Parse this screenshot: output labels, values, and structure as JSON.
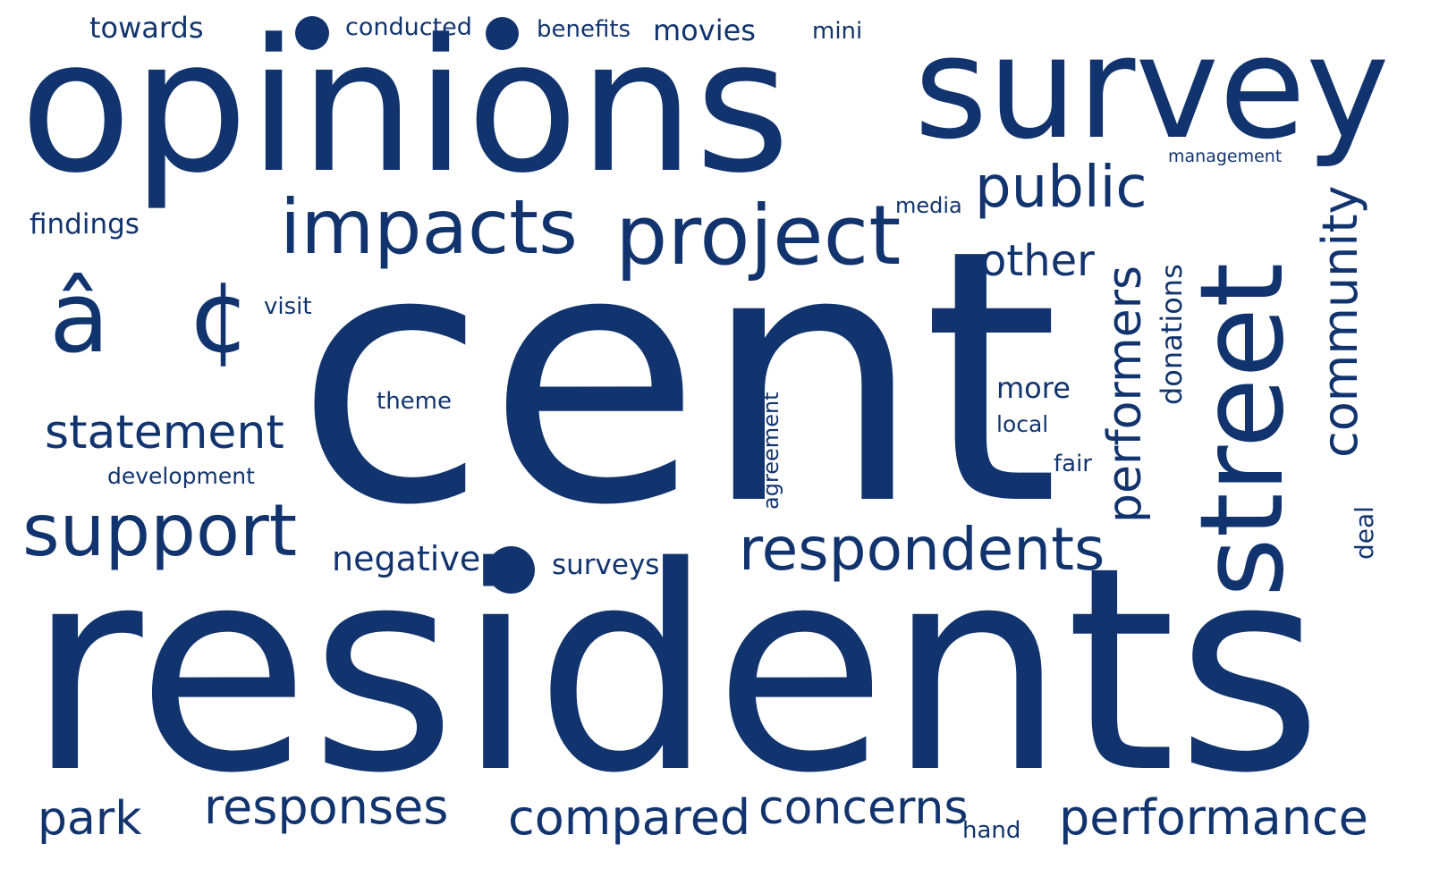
{
  "theme": {
    "word_color": "#12346e",
    "background": "#ffffff"
  },
  "words": {
    "opinions": "opinions",
    "survey": "survey",
    "cent": "cent",
    "residents": "residents",
    "impacts": "impacts",
    "project": "project",
    "public": "public",
    "street": "street",
    "community": "community",
    "performers": "performers",
    "donations": "donations",
    "other": "other",
    "statement": "statement",
    "support": "support",
    "respondents": "respondents",
    "negative": "negative",
    "surveys": "surveys",
    "theme": "theme",
    "agreement": "agreement",
    "more": "more",
    "local": "local",
    "fair": "fair",
    "deal": "deal",
    "park": "park",
    "responses": "responses",
    "compared": "compared",
    "concerns": "concerns",
    "hand": "hand",
    "performance": "performance",
    "towards": "towards",
    "conducted": "conducted",
    "benefits": "benefits",
    "movies": "movies",
    "mini": "mini",
    "management": "management",
    "findings": "findings",
    "media": "media",
    "visit": "visit",
    "development": "development",
    "mojibake": "â¢"
  }
}
